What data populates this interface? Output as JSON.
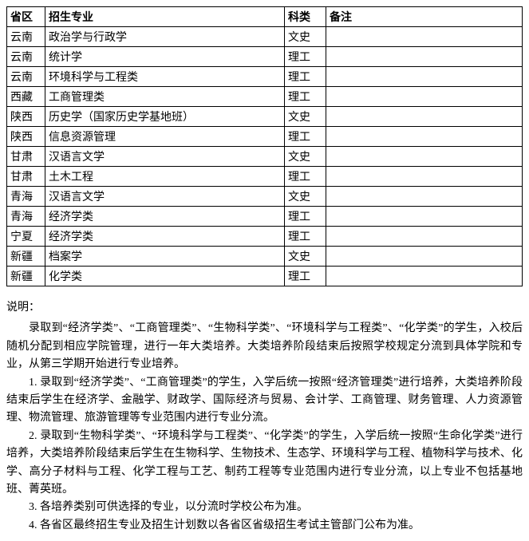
{
  "table": {
    "headers": [
      "省区",
      "招生专业",
      "科类",
      "备注"
    ],
    "rows": [
      [
        "云南",
        "政治学与行政学",
        "文史",
        ""
      ],
      [
        "云南",
        "统计学",
        "理工",
        ""
      ],
      [
        "云南",
        "环境科学与工程类",
        "理工",
        ""
      ],
      [
        "西藏",
        "工商管理类",
        "理工",
        ""
      ],
      [
        "陕西",
        "历史学（国家历史学基地班）",
        "文史",
        ""
      ],
      [
        "陕西",
        "信息资源管理",
        "理工",
        ""
      ],
      [
        "甘肃",
        "汉语言文学",
        "文史",
        ""
      ],
      [
        "甘肃",
        "土木工程",
        "理工",
        ""
      ],
      [
        "青海",
        "汉语言文学",
        "文史",
        ""
      ],
      [
        "青海",
        "经济学类",
        "理工",
        ""
      ],
      [
        "宁夏",
        "经济学类",
        "理工",
        ""
      ],
      [
        "新疆",
        "档案学",
        "文史",
        ""
      ],
      [
        "新疆",
        "化学类",
        "理工",
        ""
      ]
    ]
  },
  "notes": {
    "heading": "说明：",
    "paragraphs": [
      "录取到“经济学类”、“工商管理类”、“生物科学类”、“环境科学与工程类”、“化学类”的学生，入校后随机分配到相应学院管理，进行一年大类培养。大类培养阶段结束后按照学校规定分流到具体学院和专业，从第三学期开始进行专业培养。",
      "1. 录取到“经济学类”、“工商管理类”的学生，入学后统一按照“经济管理类”进行培养，大类培养阶段结束后学生在经济学、金融学、财政学、国际经济与贸易、会计学、工商管理、财务管理、人力资源管理、物流管理、旅游管理等专业范围内进行专业分流。",
      "2. 录取到“生物科学类”、“环境科学与工程类”、“化学类”的学生，入学后统一按照“生命化学类”进行培养，大类培养阶段结束后学生在生物科学、生物技术、生态学、环境科学与工程、植物科学与技术、化学、高分子材料与工程、化学工程与工艺、制药工程等专业范围内进行专业分流，以上专业不包括基地班、菁英班。",
      "3. 各培养类别可供选择的专业，以分流时学校公布为准。",
      "4. 各省区最终招生专业及招生计划数以各省区省级招生考试主管部门公布为准。"
    ]
  }
}
